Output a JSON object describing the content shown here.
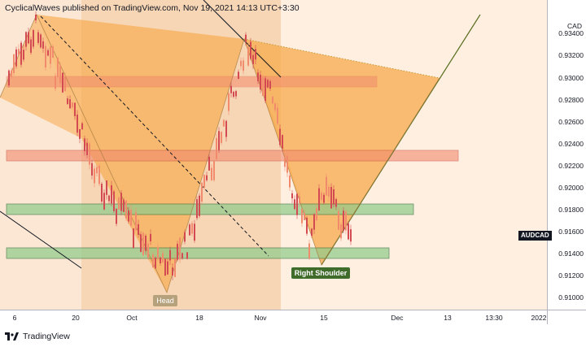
{
  "header": {
    "text": "CyclicalWaves published on TradingView.com, Nov 19, 2021 14:13 UTC+3:30"
  },
  "chart": {
    "symbol": "AUDCAD",
    "currency": "CAD",
    "price_ticks": [
      "0.93400",
      "0.93200",
      "0.93000",
      "0.92800",
      "0.92600",
      "0.92400",
      "0.92200",
      "0.92000",
      "0.91800",
      "0.91600",
      "0.91400",
      "0.91200",
      "0.91000"
    ],
    "time_ticks": [
      "6",
      "20",
      "Oct",
      "18",
      "Nov",
      "15",
      "Dec",
      "13",
      "13:30",
      "2022"
    ],
    "annotations": {
      "head": "Head",
      "right_shoulder": "Right Shoulder"
    },
    "colors": {
      "pattern_fill": "#f7a94c",
      "resistance_zone": "#f28b6e",
      "support_zone": "#8fcb8a",
      "up_candle": "#f28b6e",
      "down_candle": "#d34a52",
      "trendline": "#5a6e1e"
    }
  },
  "footer": {
    "brand": "TradingView",
    "logo_icon": "tradingview-logo-icon"
  }
}
